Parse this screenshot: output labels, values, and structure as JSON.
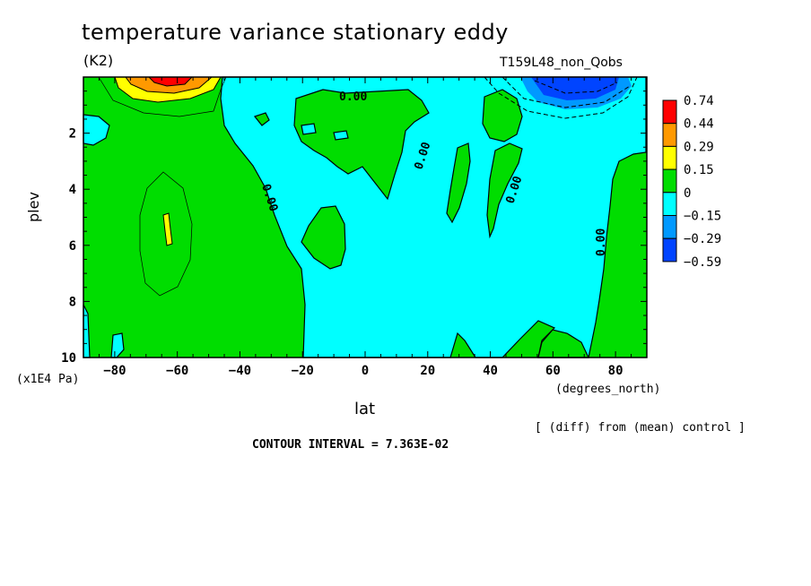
{
  "chart_data": {
    "type": "heatmap",
    "title": "temperature variance stationary eddy",
    "units": "(K2)",
    "run_label": "T159L48_non_Qobs",
    "xlabel": "lat",
    "x_unit": "(degrees_north)",
    "ylabel": "plev",
    "y_unit": "(x1E4 Pa)",
    "xlim": [
      -90,
      90
    ],
    "ylim": [
      0,
      10
    ],
    "y_inverted": true,
    "x_ticks": [
      "-80",
      "-60",
      "-40",
      "-20",
      "0",
      "20",
      "40",
      "60",
      "80"
    ],
    "y_ticks": [
      "2",
      "4",
      "6",
      "8",
      "10"
    ],
    "contour_interval_text": "CONTOUR INTERVAL = 7.363E-02",
    "note": "[ (diff) from (mean) control ]",
    "colorbar": {
      "labels": [
        "0.74",
        "0.44",
        "0.29",
        "0.15",
        "0",
        "−0.15",
        "−0.29",
        "−0.59"
      ],
      "colors": [
        "#ff0000",
        "#ff9900",
        "#ffff00",
        "#00dd00",
        "#00ffff",
        "#0099ff",
        "#0044ff"
      ]
    },
    "contour_labels": [
      "0.00",
      "0.00",
      "0.00",
      "0.00",
      "0.00",
      "0.00"
    ]
  }
}
